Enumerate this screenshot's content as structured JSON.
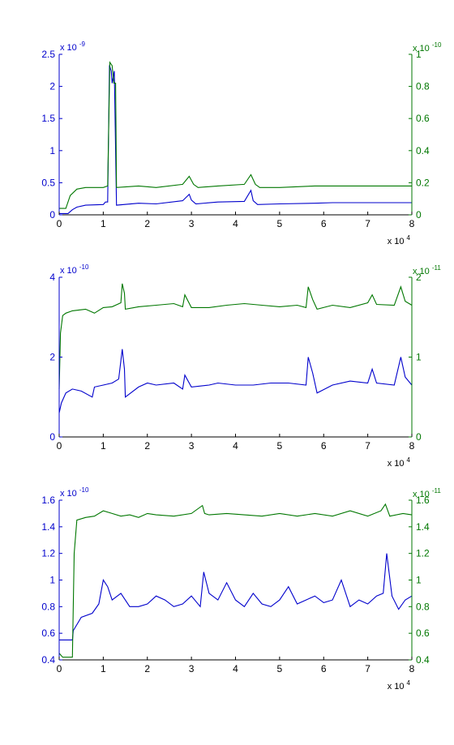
{
  "colors": {
    "left": "#0000cc",
    "right": "#007700",
    "axis": "#000000",
    "bg": "#ffffff"
  },
  "chart_data": [
    {
      "type": "line",
      "x_ticks": [
        "0",
        "1",
        "2",
        "3",
        "4",
        "5",
        "6",
        "7",
        "8"
      ],
      "x_mult": "x 10",
      "x_exp": "4",
      "xlim": [
        0,
        80000
      ],
      "grid": false,
      "left": {
        "mult": "x 10",
        "exp": "-9",
        "ticks": [
          "0",
          "0.5",
          "1",
          "1.5",
          "2",
          "2.5"
        ],
        "ylim": [
          0,
          2.5e-09
        ]
      },
      "right": {
        "mult": "x 10",
        "exp": "-10",
        "ticks": [
          "0",
          "0.2",
          "0.4",
          "0.6",
          "0.8",
          "1"
        ],
        "ylim": [
          0,
          1e-10
        ]
      },
      "series": [
        {
          "axis": "left",
          "color": "#0000cc",
          "x": [
            0,
            2000,
            3000,
            4000,
            6000,
            10000,
            10500,
            11000,
            11400,
            11800,
            12000,
            12500,
            13000,
            18000,
            22000,
            28000,
            29500,
            30000,
            31000,
            36000,
            42000,
            43500,
            44000,
            45000,
            50000,
            58000,
            62000,
            70000,
            76000,
            80000
          ],
          "y": [
            2e-11,
            2e-11,
            8e-11,
            1.2e-10,
            1.5e-10,
            1.6e-10,
            2e-10,
            2e-10,
            2.33e-09,
            2.24e-09,
            2.05e-09,
            2.24e-09,
            1.5e-10,
            1.8e-10,
            1.7e-10,
            2.2e-10,
            3.2e-10,
            2.3e-10,
            1.7e-10,
            2e-10,
            2.1e-10,
            3.8e-10,
            2.2e-10,
            1.6e-10,
            1.7e-10,
            1.8e-10,
            1.9e-10,
            1.9e-10,
            1.9e-10,
            1.9e-10
          ]
        },
        {
          "axis": "right",
          "color": "#007700",
          "x": [
            0,
            1500,
            2500,
            4000,
            6000,
            10000,
            11000,
            11500,
            12000,
            12400,
            12800,
            13000,
            18000,
            22000,
            28000,
            29500,
            30500,
            31500,
            36000,
            42000,
            43500,
            44500,
            45500,
            50000,
            58000,
            62000,
            70000,
            76000,
            80000
          ],
          "y": [
            4e-12,
            4e-12,
            1.2e-11,
            1.6e-11,
            1.7e-11,
            1.7e-11,
            1.8e-11,
            9.5e-11,
            9.3e-11,
            8.2e-11,
            8.2e-11,
            1.7e-11,
            1.8e-11,
            1.7e-11,
            1.9e-11,
            2.4e-11,
            1.9e-11,
            1.7e-11,
            1.8e-11,
            1.9e-11,
            2.5e-11,
            1.9e-11,
            1.7e-11,
            1.7e-11,
            1.8e-11,
            1.8e-11,
            1.8e-11,
            1.8e-11,
            1.8e-11
          ]
        }
      ]
    },
    {
      "type": "line",
      "x_ticks": [
        "0",
        "1",
        "2",
        "3",
        "4",
        "5",
        "6",
        "7",
        "8"
      ],
      "x_mult": "x 10",
      "x_exp": "4",
      "xlim": [
        0,
        80000
      ],
      "grid": false,
      "left": {
        "mult": "x 10",
        "exp": "-10",
        "ticks": [
          "0",
          "2",
          "4"
        ],
        "ylim": [
          0,
          4e-10
        ]
      },
      "right": {
        "mult": "x 10",
        "exp": "-11",
        "ticks": [
          "0",
          "1",
          "2"
        ],
        "ylim": [
          0,
          2e-11
        ]
      },
      "series": [
        {
          "axis": "left",
          "color": "#0000cc",
          "x": [
            0,
            500,
            1500,
            3000,
            5000,
            7500,
            8000,
            10000,
            12000,
            13500,
            14300,
            14800,
            15000,
            18000,
            20000,
            22000,
            26000,
            28000,
            28500,
            30000,
            34000,
            36000,
            40000,
            44000,
            48000,
            52000,
            56000,
            56500,
            57500,
            58500,
            62000,
            66000,
            70000,
            71000,
            72000,
            76000,
            77500,
            78500,
            80000
          ],
          "y": [
            6e-11,
            8.5e-11,
            1.1e-10,
            1.2e-10,
            1.15e-10,
            1e-10,
            1.25e-10,
            1.3e-10,
            1.35e-10,
            1.45e-10,
            2.2e-10,
            1.7e-10,
            1e-10,
            1.25e-10,
            1.35e-10,
            1.3e-10,
            1.35e-10,
            1.2e-10,
            1.55e-10,
            1.25e-10,
            1.3e-10,
            1.35e-10,
            1.3e-10,
            1.3e-10,
            1.35e-10,
            1.35e-10,
            1.3e-10,
            2e-10,
            1.6e-10,
            1.1e-10,
            1.3e-10,
            1.4e-10,
            1.35e-10,
            1.7e-10,
            1.35e-10,
            1.3e-10,
            2e-10,
            1.5e-10,
            1.3e-10
          ]
        },
        {
          "axis": "right",
          "color": "#007700",
          "x": [
            0,
            300,
            800,
            1500,
            3000,
            6000,
            8000,
            10000,
            12000,
            14000,
            14300,
            14800,
            15000,
            18000,
            22000,
            26000,
            28000,
            28500,
            30000,
            34000,
            38000,
            42000,
            46000,
            50000,
            54000,
            56000,
            56500,
            57500,
            58500,
            62000,
            66000,
            70000,
            71000,
            72000,
            76000,
            77500,
            78500,
            80000
          ],
          "y": [
            6e-12,
            1.3e-11,
            1.52e-11,
            1.55e-11,
            1.58e-11,
            1.6e-11,
            1.55e-11,
            1.62e-11,
            1.63e-11,
            1.68e-11,
            1.92e-11,
            1.8e-11,
            1.6e-11,
            1.63e-11,
            1.65e-11,
            1.67e-11,
            1.63e-11,
            1.78e-11,
            1.62e-11,
            1.62e-11,
            1.65e-11,
            1.67e-11,
            1.65e-11,
            1.63e-11,
            1.65e-11,
            1.62e-11,
            1.88e-11,
            1.72e-11,
            1.6e-11,
            1.65e-11,
            1.62e-11,
            1.68e-11,
            1.78e-11,
            1.66e-11,
            1.65e-11,
            1.88e-11,
            1.7e-11,
            1.65e-11
          ]
        }
      ]
    },
    {
      "type": "line",
      "x_ticks": [
        "0",
        "1",
        "2",
        "3",
        "4",
        "5",
        "6",
        "7",
        "8"
      ],
      "x_mult": "x 10",
      "x_exp": "4",
      "xlim": [
        0,
        80000
      ],
      "grid": false,
      "left": {
        "mult": "x 10",
        "exp": "-10",
        "ticks": [
          "0.4",
          "0.6",
          "0.8",
          "1",
          "1.2",
          "1.4",
          "1.6"
        ],
        "ylim": [
          4e-11,
          1.6e-10
        ]
      },
      "right": {
        "mult": "x 10",
        "exp": "-11",
        "ticks": [
          "0.4",
          "0.6",
          "0.8",
          "1",
          "1.2",
          "1.4",
          "1.6"
        ],
        "ylim": [
          4e-12,
          1.6e-11
        ]
      },
      "series": [
        {
          "axis": "left",
          "color": "#0000cc",
          "x": [
            0,
            3000,
            3200,
            5000,
            7500,
            9000,
            10000,
            11000,
            12000,
            14000,
            16000,
            18000,
            20000,
            22000,
            24000,
            26000,
            28000,
            30000,
            32000,
            32800,
            34000,
            36000,
            38000,
            40000,
            42000,
            44000,
            46000,
            48000,
            50000,
            52000,
            54000,
            56000,
            58000,
            60000,
            62000,
            64000,
            66000,
            68000,
            70000,
            72000,
            73500,
            74300,
            75500,
            77000,
            78500,
            80000
          ],
          "y": [
            5.5e-11,
            5.5e-11,
            6.2e-11,
            7.2e-11,
            7.5e-11,
            8.2e-11,
            1e-10,
            9.5e-11,
            8.5e-11,
            9e-11,
            8e-11,
            8e-11,
            8.2e-11,
            8.8e-11,
            8.5e-11,
            8e-11,
            8.2e-11,
            8.8e-11,
            8e-11,
            1.06e-10,
            9e-11,
            8.5e-11,
            9.8e-11,
            8.5e-11,
            8e-11,
            9e-11,
            8.2e-11,
            8e-11,
            8.5e-11,
            9.5e-11,
            8.2e-11,
            8.5e-11,
            8.8e-11,
            8.3e-11,
            8.5e-11,
            1e-10,
            8e-11,
            8.5e-11,
            8.2e-11,
            8.8e-11,
            9e-11,
            1.2e-10,
            8.8e-11,
            7.8e-11,
            8.5e-11,
            8.8e-11
          ]
        },
        {
          "axis": "right",
          "color": "#007700",
          "x": [
            0,
            800,
            3000,
            3400,
            4000,
            6000,
            8000,
            10000,
            12000,
            14000,
            16000,
            18000,
            20000,
            22000,
            26000,
            30000,
            32500,
            33000,
            34000,
            38000,
            42000,
            46000,
            50000,
            54000,
            58000,
            62000,
            66000,
            70000,
            73000,
            74000,
            75000,
            78000,
            80000
          ],
          "y": [
            4.5e-12,
            4.2e-12,
            4.2e-12,
            1.2e-11,
            1.45e-11,
            1.47e-11,
            1.48e-11,
            1.52e-11,
            1.5e-11,
            1.48e-11,
            1.49e-11,
            1.47e-11,
            1.5e-11,
            1.49e-11,
            1.48e-11,
            1.5e-11,
            1.56e-11,
            1.5e-11,
            1.49e-11,
            1.5e-11,
            1.49e-11,
            1.48e-11,
            1.5e-11,
            1.48e-11,
            1.5e-11,
            1.48e-11,
            1.52e-11,
            1.48e-11,
            1.52e-11,
            1.57e-11,
            1.48e-11,
            1.5e-11,
            1.49e-11
          ]
        }
      ]
    }
  ]
}
